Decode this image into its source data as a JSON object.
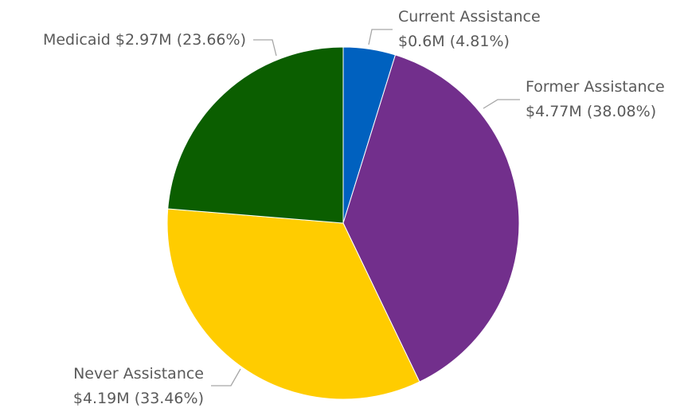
{
  "chart_data": {
    "type": "pie",
    "title": "",
    "series": [
      {
        "name": "Current Assistance",
        "value": 0.6,
        "value_label": "$0.6M",
        "percent": 4.81,
        "percent_label": "(4.81%)",
        "color": "#0061bf"
      },
      {
        "name": "Former Assistance",
        "value": 4.77,
        "value_label": "$4.77M",
        "percent": 38.08,
        "percent_label": "(38.08%)",
        "color": "#722f8c"
      },
      {
        "name": "Never Assistance",
        "value": 4.19,
        "value_label": "$4.19M",
        "percent": 33.46,
        "percent_label": "(33.46%)",
        "color": "#ffcc00"
      },
      {
        "name": "Medicaid",
        "value": 2.97,
        "value_label": "$2.97M",
        "percent": 23.66,
        "percent_label": "(23.66%)",
        "color": "#0b5e00"
      }
    ],
    "start_angle": "top",
    "direction": "clockwise",
    "legend": "none",
    "label_color": "#5a5a5a",
    "leader_color": "#a6a6a6"
  }
}
